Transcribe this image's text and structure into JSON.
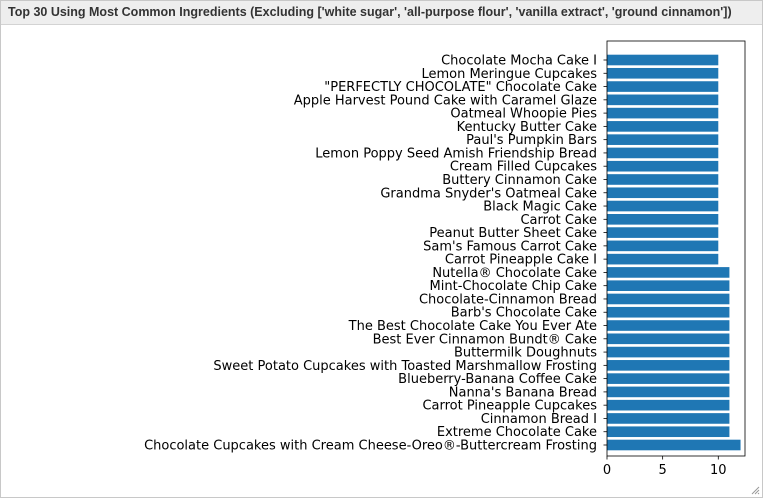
{
  "window": {
    "title": "Top 30 Using Most Common Ingredients (Excluding ['white sugar', 'all-purpose flour', 'vanilla extract', 'ground cinnamon'])"
  },
  "colors": {
    "bar": "#1f77b4",
    "axis": "#000000",
    "text": "#000000"
  },
  "icons": {
    "resize": "resize-grip-icon"
  },
  "chart_data": {
    "type": "bar",
    "orientation": "horizontal",
    "title": "",
    "xlabel": "",
    "ylabel": "",
    "xlim": [
      0,
      12.4
    ],
    "xticks": [
      0,
      5,
      10
    ],
    "grid": false,
    "categories": [
      "Chocolate Mocha Cake I",
      "Lemon Meringue Cupcakes",
      "\"PERFECTLY CHOCOLATE\" Chocolate Cake",
      "Apple Harvest Pound Cake with Caramel Glaze",
      "Oatmeal Whoopie Pies",
      "Kentucky Butter Cake",
      "Paul's Pumpkin Bars",
      "Lemon Poppy Seed Amish Friendship Bread",
      "Cream Filled Cupcakes",
      "Buttery Cinnamon Cake",
      "Grandma Snyder's Oatmeal Cake",
      "Black Magic Cake",
      "Carrot Cake",
      "Peanut Butter Sheet Cake",
      "Sam's Famous Carrot Cake",
      "Carrot Pineapple Cake I",
      "Nutella® Chocolate Cake",
      "Mint-Chocolate Chip Cake",
      "Chocolate-Cinnamon Bread",
      "Barb's Chocolate Cake",
      "The Best Chocolate Cake You Ever Ate",
      "Best Ever Cinnamon Bundt® Cake",
      "Buttermilk Doughnuts",
      "Sweet Potato Cupcakes with Toasted Marshmallow Frosting",
      "Blueberry-Banana Coffee Cake",
      "Nanna's Banana Bread",
      "Carrot Pineapple Cupcakes",
      "Cinnamon Bread I",
      "Extreme Chocolate Cake",
      "Chocolate Cupcakes with Cream Cheese-Oreo®-Buttercream Frosting"
    ],
    "values": [
      10,
      10,
      10,
      10,
      10,
      10,
      10,
      10,
      10,
      10,
      10,
      10,
      10,
      10,
      10,
      10,
      11,
      11,
      11,
      11,
      11,
      11,
      11,
      11,
      11,
      11,
      11,
      11,
      11,
      12
    ]
  }
}
